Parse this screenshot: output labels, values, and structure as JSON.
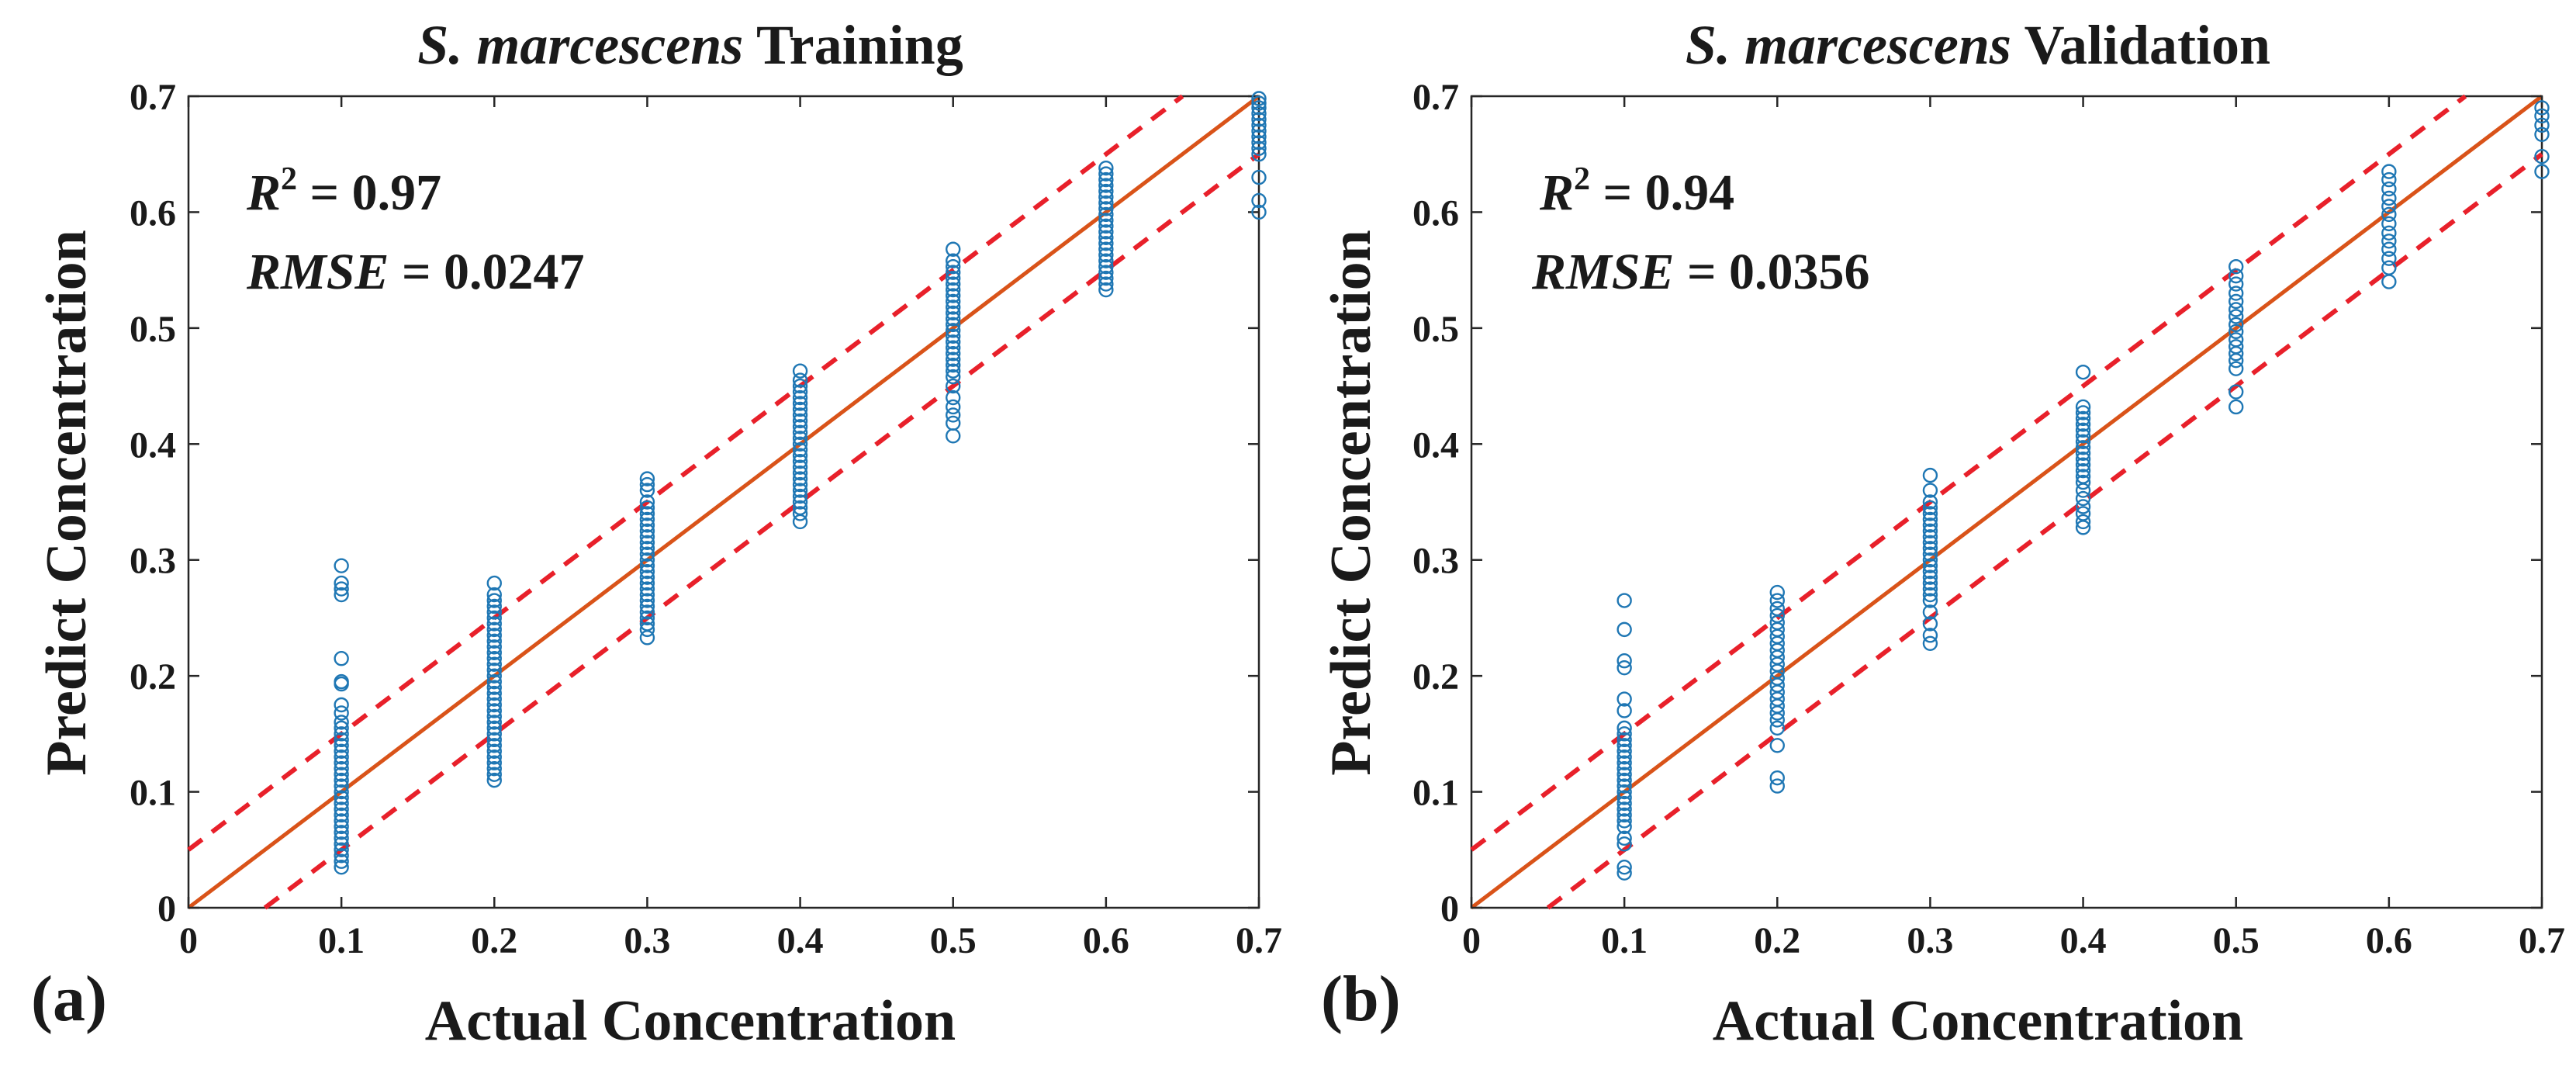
{
  "panels": [
    {
      "panel_label": "(a)",
      "title_italic": "S. marcescens",
      "title_plain": " Training",
      "r2_label": "R",
      "r2_sup": "2",
      "r2_value": " = 0.97",
      "rmse_label": "RMSE",
      "rmse_value": " = 0.0247"
    },
    {
      "panel_label": "(b)",
      "title_italic": "S. marcescens",
      "title_plain": " Validation",
      "r2_label": "R",
      "r2_sup": "2",
      "r2_value": " = 0.94",
      "rmse_label": "RMSE",
      "rmse_value": " = 0.0356"
    }
  ],
  "chart_data": [
    {
      "type": "scatter",
      "title": "S. marcescens Training",
      "xlabel": "Actual Concentration",
      "ylabel": "Predict Concentration",
      "xlim": [
        0,
        0.7
      ],
      "ylim": [
        0,
        0.7
      ],
      "xticks": [
        "0",
        "0.1",
        "0.2",
        "0.3",
        "0.4",
        "0.5",
        "0.6",
        "0.7"
      ],
      "yticks": [
        "0",
        "0.1",
        "0.2",
        "0.3",
        "0.4",
        "0.5",
        "0.6",
        "0.7"
      ],
      "grid": false,
      "reference_lines": {
        "identity": {
          "slope": 1,
          "intercept": 0,
          "color": "#d95319",
          "style": "solid"
        },
        "bounds": [
          {
            "slope": 1,
            "intercept": 0.05,
            "color": "#e8202a",
            "style": "dashed"
          },
          {
            "slope": 1,
            "intercept": -0.05,
            "color": "#e8202a",
            "style": "dashed"
          }
        ]
      },
      "marker_color": "#1f77b4",
      "annotations": [
        "R2 = 0.97",
        "RMSE = 0.0247"
      ],
      "series": [
        {
          "x": 0.1,
          "y": [
            0.295,
            0.28,
            0.275,
            0.27,
            0.215,
            0.195,
            0.193,
            0.175,
            0.168,
            0.16,
            0.155,
            0.15,
            0.145,
            0.14,
            0.135,
            0.13,
            0.125,
            0.12,
            0.115,
            0.11,
            0.105,
            0.1,
            0.095,
            0.09,
            0.085,
            0.08,
            0.075,
            0.07,
            0.065,
            0.06,
            0.055,
            0.05,
            0.045,
            0.04,
            0.035
          ]
        },
        {
          "x": 0.2,
          "y": [
            0.28,
            0.27,
            0.265,
            0.26,
            0.255,
            0.25,
            0.245,
            0.24,
            0.235,
            0.23,
            0.225,
            0.22,
            0.215,
            0.21,
            0.205,
            0.2,
            0.195,
            0.19,
            0.185,
            0.18,
            0.175,
            0.17,
            0.165,
            0.16,
            0.155,
            0.15,
            0.145,
            0.14,
            0.135,
            0.13,
            0.125,
            0.12,
            0.115,
            0.11
          ]
        },
        {
          "x": 0.3,
          "y": [
            0.37,
            0.365,
            0.36,
            0.35,
            0.345,
            0.34,
            0.335,
            0.33,
            0.325,
            0.32,
            0.315,
            0.31,
            0.305,
            0.3,
            0.295,
            0.29,
            0.285,
            0.28,
            0.275,
            0.27,
            0.265,
            0.26,
            0.255,
            0.25,
            0.245,
            0.24,
            0.233
          ]
        },
        {
          "x": 0.4,
          "y": [
            0.463,
            0.455,
            0.45,
            0.445,
            0.44,
            0.435,
            0.43,
            0.425,
            0.42,
            0.415,
            0.41,
            0.405,
            0.4,
            0.395,
            0.39,
            0.385,
            0.38,
            0.375,
            0.37,
            0.365,
            0.36,
            0.355,
            0.35,
            0.345,
            0.34,
            0.333
          ]
        },
        {
          "x": 0.5,
          "y": [
            0.568,
            0.558,
            0.553,
            0.548,
            0.543,
            0.538,
            0.533,
            0.528,
            0.523,
            0.518,
            0.513,
            0.508,
            0.503,
            0.498,
            0.493,
            0.488,
            0.483,
            0.478,
            0.473,
            0.468,
            0.463,
            0.458,
            0.45,
            0.44,
            0.432,
            0.425,
            0.418,
            0.407
          ]
        },
        {
          "x": 0.6,
          "y": [
            0.638,
            0.633,
            0.628,
            0.623,
            0.618,
            0.613,
            0.608,
            0.603,
            0.598,
            0.593,
            0.588,
            0.583,
            0.578,
            0.573,
            0.568,
            0.563,
            0.558,
            0.553,
            0.548,
            0.543,
            0.538,
            0.533
          ]
        },
        {
          "x": 0.7,
          "y": [
            0.698,
            0.694,
            0.69,
            0.685,
            0.68,
            0.675,
            0.67,
            0.665,
            0.66,
            0.655,
            0.65,
            0.63,
            0.61,
            0.6
          ]
        }
      ]
    },
    {
      "type": "scatter",
      "title": "S. marcescens Validation",
      "xlabel": "Actual Concentration",
      "ylabel": "Predict Concentration",
      "xlim": [
        0,
        0.7
      ],
      "ylim": [
        0,
        0.7
      ],
      "xticks": [
        "0",
        "0.1",
        "0.2",
        "0.3",
        "0.4",
        "0.5",
        "0.6",
        "0.7"
      ],
      "yticks": [
        "0",
        "0.1",
        "0.2",
        "0.3",
        "0.4",
        "0.5",
        "0.6",
        "0.7"
      ],
      "grid": false,
      "reference_lines": {
        "identity": {
          "slope": 1,
          "intercept": 0,
          "color": "#d95319",
          "style": "solid"
        },
        "bounds": [
          {
            "slope": 1,
            "intercept": 0.05,
            "color": "#e8202a",
            "style": "dashed"
          },
          {
            "slope": 1,
            "intercept": -0.05,
            "color": "#e8202a",
            "style": "dashed"
          }
        ]
      },
      "marker_color": "#1f77b4",
      "annotations": [
        "R2 = 0.94",
        "RMSE = 0.0356"
      ],
      "series": [
        {
          "x": 0.1,
          "y": [
            0.265,
            0.24,
            0.213,
            0.207,
            0.18,
            0.17,
            0.155,
            0.15,
            0.145,
            0.14,
            0.135,
            0.13,
            0.125,
            0.12,
            0.115,
            0.11,
            0.105,
            0.1,
            0.095,
            0.09,
            0.085,
            0.08,
            0.075,
            0.07,
            0.06,
            0.055,
            0.035,
            0.03
          ]
        },
        {
          "x": 0.2,
          "y": [
            0.272,
            0.265,
            0.258,
            0.252,
            0.246,
            0.24,
            0.234,
            0.228,
            0.222,
            0.216,
            0.21,
            0.204,
            0.198,
            0.192,
            0.186,
            0.18,
            0.174,
            0.168,
            0.162,
            0.155,
            0.14,
            0.112,
            0.105
          ]
        },
        {
          "x": 0.3,
          "y": [
            0.373,
            0.36,
            0.35,
            0.345,
            0.34,
            0.335,
            0.33,
            0.325,
            0.32,
            0.315,
            0.31,
            0.305,
            0.3,
            0.295,
            0.29,
            0.285,
            0.28,
            0.275,
            0.27,
            0.265,
            0.255,
            0.245,
            0.235,
            0.228
          ]
        },
        {
          "x": 0.4,
          "y": [
            0.462,
            0.432,
            0.427,
            0.422,
            0.417,
            0.412,
            0.407,
            0.402,
            0.397,
            0.392,
            0.387,
            0.382,
            0.377,
            0.372,
            0.367,
            0.36,
            0.353,
            0.346,
            0.34,
            0.333,
            0.328
          ]
        },
        {
          "x": 0.5,
          "y": [
            0.553,
            0.545,
            0.538,
            0.53,
            0.523,
            0.516,
            0.51,
            0.503,
            0.497,
            0.49,
            0.484,
            0.478,
            0.472,
            0.465,
            0.445,
            0.432
          ]
        },
        {
          "x": 0.6,
          "y": [
            0.635,
            0.628,
            0.62,
            0.612,
            0.605,
            0.598,
            0.59,
            0.582,
            0.575,
            0.568,
            0.56,
            0.552,
            0.54
          ]
        },
        {
          "x": 0.7,
          "y": [
            0.69,
            0.683,
            0.675,
            0.667,
            0.648,
            0.635
          ]
        }
      ]
    }
  ]
}
